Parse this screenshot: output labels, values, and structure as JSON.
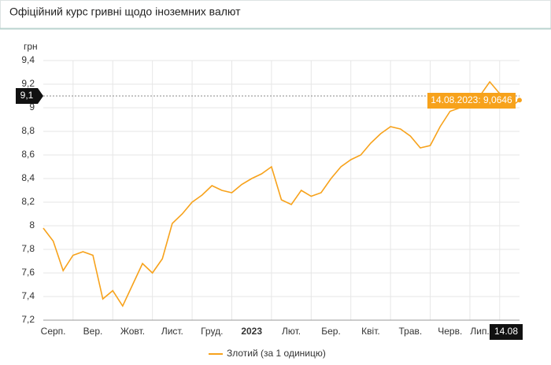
{
  "chart_data": {
    "type": "line",
    "title": "Офіційний курс гривні щодо іноземних валют",
    "y_label": "грн",
    "categories": [
      null,
      "Серп.",
      null,
      null,
      null,
      "Вер.",
      null,
      null,
      null,
      "Жовт.",
      null,
      null,
      null,
      "Лист.",
      null,
      null,
      null,
      "Груд.",
      null,
      null,
      null,
      "2023",
      null,
      null,
      null,
      "Лют.",
      null,
      null,
      null,
      "Бер.",
      null,
      null,
      null,
      "Квіт.",
      null,
      null,
      null,
      "Трав.",
      null,
      null,
      null,
      "Черв.",
      null,
      null,
      "Лип.",
      null,
      null,
      null,
      "14.08"
    ],
    "series": [
      {
        "name": "Злотий (за 1 одиницю)",
        "color": "#f7a21b",
        "values": [
          7.98,
          7.87,
          7.62,
          7.75,
          7.78,
          7.75,
          7.38,
          7.45,
          7.32,
          7.5,
          7.68,
          7.6,
          7.72,
          8.02,
          8.1,
          8.2,
          8.26,
          8.34,
          8.3,
          8.28,
          8.35,
          8.4,
          8.44,
          8.5,
          8.22,
          8.18,
          8.3,
          8.25,
          8.28,
          8.4,
          8.5,
          8.56,
          8.6,
          8.7,
          8.78,
          8.84,
          8.82,
          8.76,
          8.66,
          8.68,
          8.84,
          8.97,
          9.0,
          9.02,
          9.1,
          9.22,
          9.12,
          9.0,
          9.0646
        ]
      }
    ],
    "ylim": [
      7.2,
      9.4
    ],
    "yticks": [
      {
        "value": 7.2,
        "label": "7,2"
      },
      {
        "value": 7.4,
        "label": "7,4"
      },
      {
        "value": 7.6,
        "label": "7,6"
      },
      {
        "value": 7.8,
        "label": "7,8"
      },
      8,
      {
        "value": 8.2,
        "label": "8,2"
      },
      {
        "value": 8.4,
        "label": "8,4"
      },
      {
        "value": 8.6,
        "label": "8,6"
      },
      {
        "value": 8.8,
        "label": "8,8"
      },
      9,
      {
        "value": 9.2,
        "label": "9,2"
      },
      {
        "value": 9.4,
        "label": "9,4"
      }
    ],
    "grid": true,
    "crosshair": {
      "value": 9.1,
      "label": "9,1"
    },
    "tooltip": "14.08.2023: 9,0646",
    "legend": "bottom"
  }
}
